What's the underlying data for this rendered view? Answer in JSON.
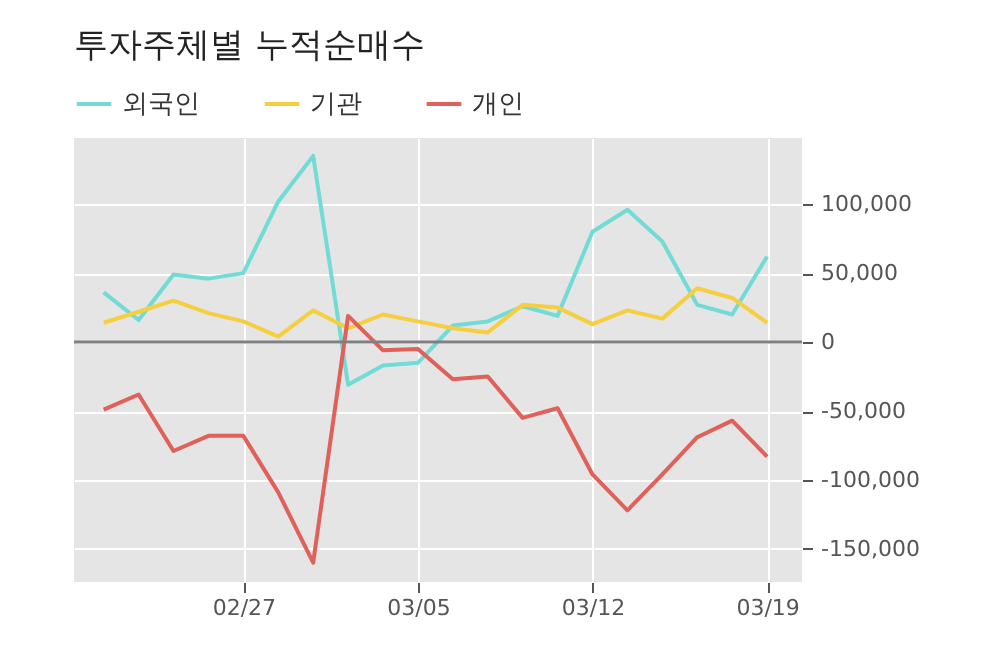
{
  "chart_data": {
    "type": "line",
    "title": "투자주체별 누적순매수",
    "categories": [
      null,
      null,
      null,
      null,
      "02/27",
      null,
      null,
      null,
      null,
      "03/05",
      null,
      null,
      null,
      null,
      "03/12",
      null,
      null,
      null,
      null,
      "03/19"
    ],
    "series": [
      {
        "name": "외국인",
        "color": "#72dbd5",
        "values": [
          36000,
          16000,
          49000,
          46000,
          50000,
          102000,
          135000,
          -31000,
          -17000,
          -15000,
          12000,
          15000,
          26000,
          19000,
          80000,
          96000,
          73000,
          27000,
          20000,
          62000
        ]
      },
      {
        "name": "기관",
        "color": "#f5cf40",
        "values": [
          14000,
          22000,
          30000,
          21000,
          15000,
          4000,
          23000,
          10000,
          20000,
          15000,
          10000,
          7000,
          27000,
          25000,
          13000,
          23000,
          17000,
          39000,
          32000,
          14000
        ]
      },
      {
        "name": "개인",
        "color": "#e0605a",
        "values": [
          -49000,
          -38000,
          -79000,
          -68000,
          -68000,
          -109000,
          -160000,
          19000,
          -6000,
          -5000,
          -27000,
          -25000,
          -55000,
          -48000,
          -96000,
          -122000,
          -96000,
          -69000,
          -57000,
          -83000
        ]
      }
    ],
    "ylim": [
      -174000,
      148000
    ],
    "yticks": [
      {
        "value": -150000,
        "label": "-150,000"
      },
      {
        "value": -100000,
        "label": "-100,000"
      },
      {
        "value": -50000,
        "label": "-50,000"
      },
      0,
      {
        "value": 50000,
        "label": "50,000"
      },
      {
        "value": 100000,
        "label": "100,000"
      }
    ],
    "ref_lines": [
      {
        "axis": "y",
        "value": 0,
        "color": "#808080"
      }
    ],
    "grid": true,
    "legend": "top left",
    "marker": "none",
    "line_style": "solid"
  }
}
